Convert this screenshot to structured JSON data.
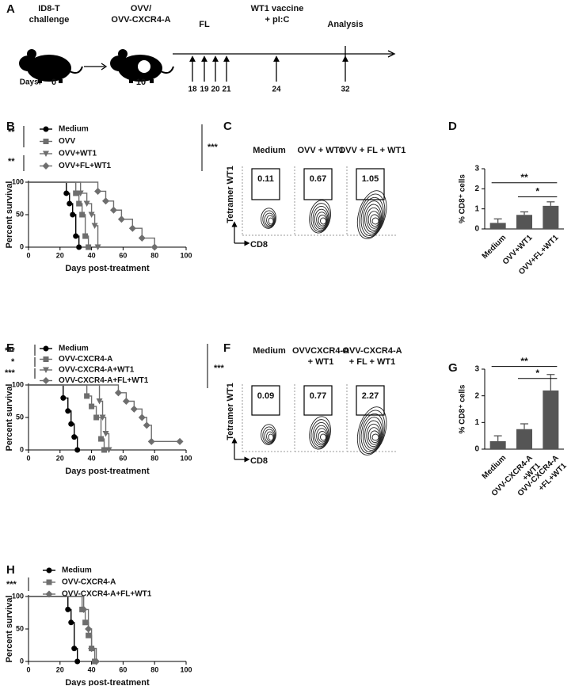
{
  "panel_labels": [
    "A",
    "B",
    "C",
    "D",
    "E",
    "F",
    "G",
    "H"
  ],
  "timeline": {
    "events": [
      "ID8-T\nchallenge",
      "OVV/\nOVV-CXCR4-A",
      "FL",
      "WT1 vaccine\n+ pI:C",
      "Analysis"
    ],
    "days_label": "Days:",
    "days": [
      0,
      10,
      18,
      19,
      20,
      21,
      24,
      32
    ]
  },
  "flow_panels": [
    {
      "y_label": "Tetramer WT1",
      "x_label": "CD8",
      "plots": [
        {
          "title": "Medium",
          "gate": 0.11
        },
        {
          "title": "OVV + WT1",
          "gate": 0.67
        },
        {
          "title": "OVV + FL + WT1",
          "gate": 1.05
        }
      ]
    },
    {
      "y_label": "Tetramer WT1",
      "x_label": "CD8",
      "plots": [
        {
          "title": "Medium",
          "gate": 0.09
        },
        {
          "title": "OVVCXCR4-A\n+ WT1",
          "gate": 0.77
        },
        {
          "title": "OVV-CXCR4-A\n+ FL + WT1",
          "gate": 2.27
        }
      ]
    }
  ],
  "chart_data": [
    {
      "type": "line",
      "step": true,
      "xlabel": "Days post-treatment",
      "ylabel": "Percent survival",
      "xlim": [
        0,
        100
      ],
      "ylim": [
        0,
        100
      ],
      "xticks": [
        0,
        20,
        40,
        60,
        80,
        100
      ],
      "yticks": [
        0,
        50,
        100
      ],
      "series": [
        {
          "name": "Medium",
          "color": "#000000",
          "marker": "circle",
          "x": [
            0,
            24,
            26,
            28,
            30,
            32
          ],
          "values": [
            100,
            83,
            67,
            50,
            17,
            0
          ]
        },
        {
          "name": "OVV",
          "color": "#6e6e6e",
          "marker": "square",
          "x": [
            0,
            30,
            32,
            34,
            36,
            38
          ],
          "values": [
            100,
            83,
            67,
            50,
            17,
            0
          ]
        },
        {
          "name": "OVV+WT1",
          "color": "#6e6e6e",
          "marker": "triangle",
          "x": [
            0,
            33,
            37,
            40,
            42,
            44
          ],
          "values": [
            100,
            83,
            67,
            50,
            33,
            0
          ]
        },
        {
          "name": "OVV+FL+WT1",
          "color": "#6e6e6e",
          "marker": "diamond",
          "x": [
            0,
            44,
            49,
            54,
            59,
            66,
            72,
            80
          ],
          "values": [
            100,
            86,
            71,
            57,
            43,
            29,
            14,
            0
          ]
        }
      ],
      "annotations": [
        "**",
        "**",
        "***"
      ]
    },
    {
      "type": "bar",
      "ylabel": "% CD8⁺ cells",
      "categories": [
        "Medium",
        "OVV+WT1",
        "OVV+FL+WT1"
      ],
      "values": [
        0.3,
        0.7,
        1.15
      ],
      "errors": [
        0.2,
        0.15,
        0.2
      ],
      "color": "#555555",
      "ylim": [
        0,
        3
      ],
      "yticks": [
        0,
        1,
        2,
        3
      ],
      "annotations": [
        {
          "text": "**",
          "from": 0,
          "to": 2,
          "y": 2.3
        },
        {
          "text": "*",
          "from": 1,
          "to": 2,
          "y": 1.6
        }
      ]
    },
    {
      "type": "line",
      "step": true,
      "xlabel": "Days post-treatment",
      "ylabel": "Percent survival",
      "xlim": [
        0,
        100
      ],
      "ylim": [
        0,
        100
      ],
      "xticks": [
        0,
        20,
        40,
        60,
        80,
        100
      ],
      "yticks": [
        0,
        50,
        100
      ],
      "series": [
        {
          "name": "Medium",
          "color": "#000000",
          "marker": "circle",
          "x": [
            0,
            22,
            25,
            27,
            29,
            31
          ],
          "values": [
            100,
            80,
            60,
            40,
            20,
            0
          ]
        },
        {
          "name": "OVV-CXCR4-A",
          "color": "#6e6e6e",
          "marker": "square",
          "x": [
            0,
            37,
            40,
            43,
            46,
            48
          ],
          "values": [
            100,
            83,
            67,
            50,
            17,
            0
          ]
        },
        {
          "name": "OVV-CXCR4-A+WT1",
          "color": "#6e6e6e",
          "marker": "triangle",
          "x": [
            0,
            45,
            47,
            49,
            51
          ],
          "values": [
            100,
            75,
            50,
            25,
            0
          ]
        },
        {
          "name": "OVV-CXCR4-A+FL+WT1",
          "color": "#6e6e6e",
          "marker": "diamond",
          "x": [
            0,
            57,
            62,
            67,
            72,
            75,
            78,
            96
          ],
          "values": [
            100,
            88,
            75,
            63,
            50,
            38,
            13,
            13
          ]
        }
      ],
      "annotations": [
        "***",
        "*",
        "***",
        "***"
      ]
    },
    {
      "type": "bar",
      "ylabel": "% CD8⁺ cells",
      "categories": [
        "Medium",
        "OVV-CXCR4-A\n+WT1",
        "OVV-CXCR4-A\n+FL+WT1"
      ],
      "values": [
        0.3,
        0.75,
        2.2
      ],
      "errors": [
        0.2,
        0.2,
        0.6
      ],
      "color": "#555555",
      "ylim": [
        0,
        3
      ],
      "yticks": [
        0,
        1,
        2,
        3
      ],
      "annotations": [
        {
          "text": "**",
          "from": 0,
          "to": 2,
          "y": 3.1
        },
        {
          "text": "*",
          "from": 1,
          "to": 2,
          "y": 2.65
        }
      ]
    },
    {
      "type": "line",
      "step": true,
      "xlabel": "Days post-treatment",
      "ylabel": "Percent survival",
      "xlim": [
        0,
        100
      ],
      "ylim": [
        0,
        100
      ],
      "xticks": [
        0,
        20,
        40,
        60,
        80,
        100
      ],
      "yticks": [
        0,
        50,
        100
      ],
      "series": [
        {
          "name": "Medium",
          "color": "#000000",
          "marker": "circle",
          "x": [
            0,
            25,
            27,
            29,
            31
          ],
          "values": [
            100,
            80,
            60,
            20,
            0
          ]
        },
        {
          "name": "OVV-CXCR4-A",
          "color": "#6e6e6e",
          "marker": "square",
          "x": [
            0,
            34,
            36,
            38,
            40,
            42
          ],
          "values": [
            100,
            80,
            60,
            40,
            20,
            0
          ]
        },
        {
          "name": "OVV-CXCR4-A+FL+WT1",
          "color": "#6e6e6e",
          "marker": "diamond",
          "x": [
            0,
            35,
            38,
            40,
            43
          ],
          "values": [
            100,
            80,
            50,
            20,
            0
          ]
        }
      ],
      "annotations": [
        "***"
      ]
    }
  ]
}
